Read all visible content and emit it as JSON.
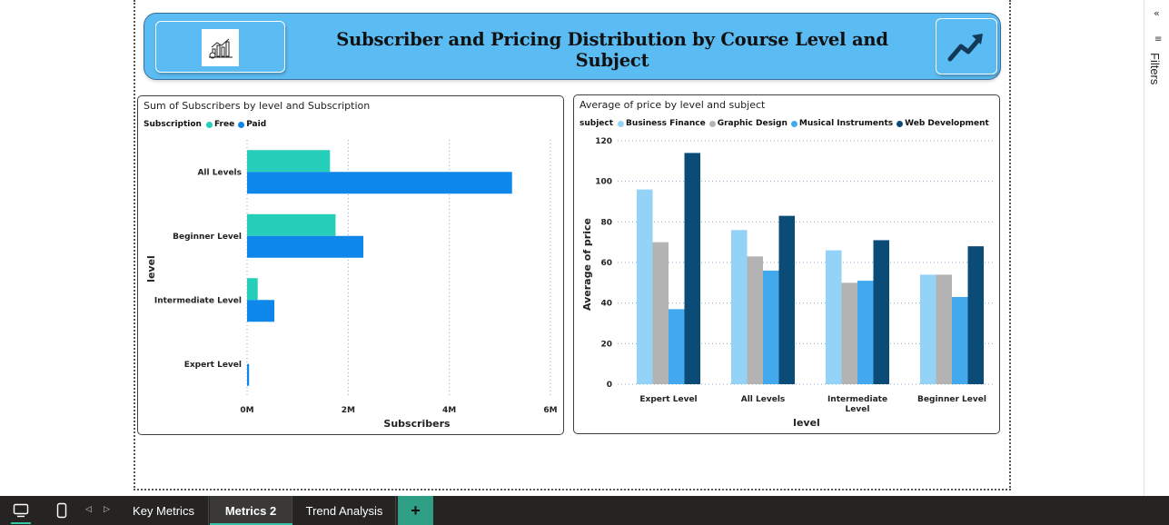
{
  "header": {
    "title": "Subscriber and Pricing Distribution by Course Level and Subject",
    "logo_icon": "analytics-chart-icon",
    "trend_icon": "trend-up-arrow-icon"
  },
  "side_pane": {
    "collapse_icon": "double-chevron-left-icon",
    "filter_icon": "filter-icon",
    "label": "Filters"
  },
  "tabbar": {
    "desktop_icon": "desktop-view-icon",
    "mobile_icon": "mobile-view-icon",
    "prev_icon": "◁",
    "next_icon": "▷",
    "tabs": [
      {
        "label": "Key Metrics",
        "active": false
      },
      {
        "label": "Metrics 2",
        "active": true
      },
      {
        "label": "Trend Analysis",
        "active": false
      }
    ],
    "add_label": "+",
    "accent": "#35c2a6"
  },
  "chart_data": [
    {
      "type": "bar",
      "orientation": "horizontal",
      "title": "Sum of Subscribers by level and Subscription",
      "legend_title": "Subscription",
      "legend_position": "top-left",
      "xlabel": "Subscribers",
      "ylabel": "level",
      "categories": [
        "All Levels",
        "Beginner Level",
        "Intermediate Level",
        "Expert Level"
      ],
      "xlim": [
        0,
        6000000
      ],
      "ticks": [
        "0M",
        "2M",
        "4M",
        "6M"
      ],
      "grid": true,
      "series": [
        {
          "name": "Free",
          "color": "#24ceb8",
          "values": [
            1640000,
            1750000,
            210000,
            0
          ]
        },
        {
          "name": "Paid",
          "color": "#0d88ea",
          "values": [
            5240000,
            2300000,
            540000,
            40000
          ]
        }
      ]
    },
    {
      "type": "bar",
      "orientation": "vertical",
      "title": "Average of price by level and subject",
      "legend_title": "subject",
      "legend_position": "top-left",
      "xlabel": "level",
      "ylabel": "Average of price",
      "categories": [
        "Expert Level",
        "All Levels",
        "Intermediate Level",
        "Beginner Level"
      ],
      "ylim": [
        0,
        120
      ],
      "ticks": [
        "0",
        "20",
        "40",
        "60",
        "80",
        "100",
        "120"
      ],
      "grid": true,
      "series": [
        {
          "name": "Business Finance",
          "color": "#93d3f7",
          "values": [
            96,
            76,
            66,
            54
          ]
        },
        {
          "name": "Graphic Design",
          "color": "#b3b3b3",
          "values": [
            70,
            63,
            50,
            54
          ]
        },
        {
          "name": "Musical Instruments",
          "color": "#42a9ef",
          "values": [
            37,
            56,
            51,
            43
          ]
        },
        {
          "name": "Web Development",
          "color": "#0b4b78",
          "values": [
            114,
            83,
            71,
            68
          ]
        }
      ]
    }
  ]
}
